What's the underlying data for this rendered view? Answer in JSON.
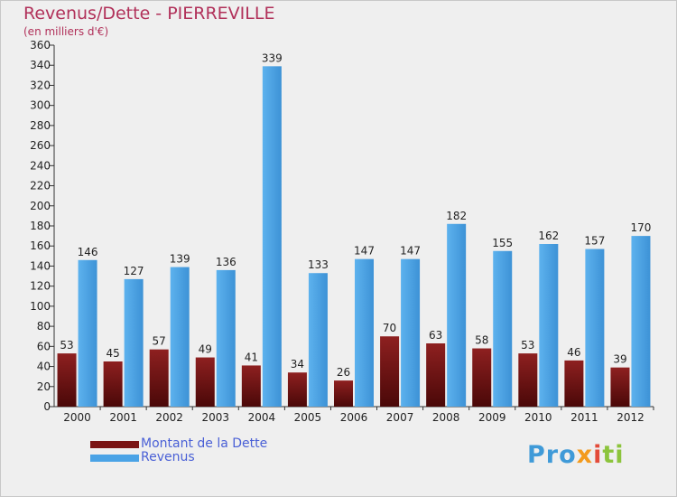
{
  "title": "Revenus/Dette - PIERREVILLE",
  "subtitle": "(en milliers d'€)",
  "colors": {
    "background": "#efefef",
    "title": "#b1315a",
    "dette": "#7a1414",
    "revenus": "#4aa3e6",
    "legend_text": "#4a60d6"
  },
  "chart_data": {
    "type": "bar",
    "title": "Revenus/Dette - PIERREVILLE",
    "subtitle": "(en milliers d'€)",
    "categories": [
      "2000",
      "2001",
      "2002",
      "2003",
      "2004",
      "2005",
      "2006",
      "2007",
      "2008",
      "2009",
      "2010",
      "2011",
      "2012"
    ],
    "series": [
      {
        "name": "Montant de la Dette",
        "color": "#7a1414",
        "values": [
          53,
          45,
          57,
          49,
          41,
          34,
          26,
          70,
          63,
          58,
          53,
          46,
          39
        ]
      },
      {
        "name": "Revenus",
        "color": "#4aa3e6",
        "values": [
          146,
          127,
          139,
          136,
          339,
          133,
          147,
          147,
          182,
          155,
          162,
          157,
          170
        ]
      }
    ],
    "yticks": [
      0,
      20,
      40,
      60,
      80,
      100,
      120,
      140,
      160,
      180,
      200,
      220,
      240,
      260,
      280,
      300,
      320,
      340,
      360
    ],
    "ylim": [
      0,
      360
    ],
    "grid": false,
    "legend_position": "bottom-left"
  },
  "legend": {
    "items": [
      {
        "label": "Montant de la Dette",
        "color": "#7a1414"
      },
      {
        "label": "Revenus",
        "color": "#4aa3e6"
      }
    ]
  },
  "logo": {
    "text": "Proxiti"
  }
}
